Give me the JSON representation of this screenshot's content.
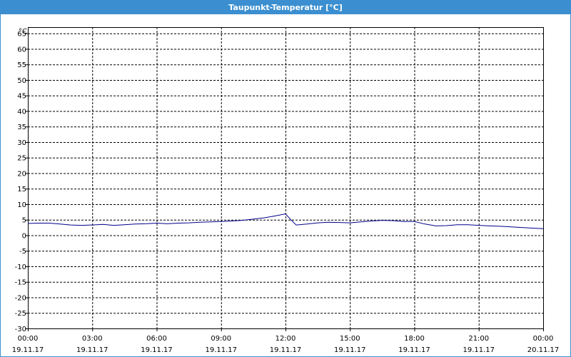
{
  "window": {
    "title": "Taupunkt-Temperatur [°C]"
  },
  "chart_data": {
    "type": "line",
    "title": "Taupunkt-Temperatur [°C]",
    "ylabel": "°C",
    "xlabel": "",
    "ylim": [
      -30,
      67
    ],
    "xlim": [
      "19.11.17 00:00",
      "20.11.17 00:00"
    ],
    "grid": true,
    "y_ticks": [
      65,
      60,
      55,
      50,
      45,
      40,
      35,
      30,
      25,
      20,
      15,
      10,
      5,
      0,
      -5,
      -10,
      -15,
      -20,
      -25,
      -30
    ],
    "x_ticks": [
      {
        "time": "00:00",
        "date": "19.11.17"
      },
      {
        "time": "03:00",
        "date": "19.11.17"
      },
      {
        "time": "06:00",
        "date": "19.11.17"
      },
      {
        "time": "09:00",
        "date": "19.11.17"
      },
      {
        "time": "12:00",
        "date": "19.11.17"
      },
      {
        "time": "15:00",
        "date": "19.11.17"
      },
      {
        "time": "18:00",
        "date": "19.11.17"
      },
      {
        "time": "21:00",
        "date": "19.11.17"
      },
      {
        "time": "00:00",
        "date": "20.11.17"
      }
    ],
    "series": [
      {
        "color": "#00008b",
        "x": [
          "19.11.17 00:00",
          "19.11.17 00:30",
          "19.11.17 01:00",
          "19.11.17 01:30",
          "19.11.17 02:00",
          "19.11.17 02:30",
          "19.11.17 03:00",
          "19.11.17 03:30",
          "19.11.17 04:00",
          "19.11.17 04:30",
          "19.11.17 05:00",
          "19.11.17 05:30",
          "19.11.17 06:00",
          "19.11.17 06:30",
          "19.11.17 07:00",
          "19.11.17 07:30",
          "19.11.17 08:00",
          "19.11.17 08:30",
          "19.11.17 09:00",
          "19.11.17 09:30",
          "19.11.17 10:00",
          "19.11.17 10:30",
          "19.11.17 11:00",
          "19.11.17 11:30",
          "19.11.17 12:00",
          "19.11.17 12:15",
          "19.11.17 12:30",
          "19.11.17 13:00",
          "19.11.17 13:30",
          "19.11.17 14:00",
          "19.11.17 14:30",
          "19.11.17 15:00",
          "19.11.17 15:30",
          "19.11.17 16:00",
          "19.11.17 16:30",
          "19.11.17 17:00",
          "19.11.17 17:30",
          "19.11.17 18:00",
          "19.11.17 18:30",
          "19.11.17 19:00",
          "19.11.17 19:30",
          "19.11.17 20:00",
          "19.11.17 20:30",
          "19.11.17 21:00",
          "19.11.17 21:30",
          "19.11.17 22:00",
          "19.11.17 22:30",
          "19.11.17 23:00",
          "19.11.17 23:30",
          "20.11.17 00:00"
        ],
        "values": [
          3.8,
          3.9,
          3.9,
          3.6,
          3.3,
          3.2,
          3.3,
          3.5,
          3.2,
          3.4,
          3.6,
          3.7,
          3.9,
          3.7,
          3.9,
          4.0,
          4.2,
          4.3,
          4.4,
          4.6,
          4.8,
          5.2,
          5.6,
          6.2,
          6.9,
          5.0,
          3.3,
          3.6,
          4.0,
          4.2,
          4.1,
          4.0,
          4.3,
          4.6,
          4.8,
          4.7,
          4.4,
          4.4,
          3.6,
          3.0,
          3.1,
          3.4,
          3.4,
          3.2,
          3.0,
          2.9,
          2.7,
          2.5,
          2.3,
          2.1
        ]
      }
    ]
  }
}
